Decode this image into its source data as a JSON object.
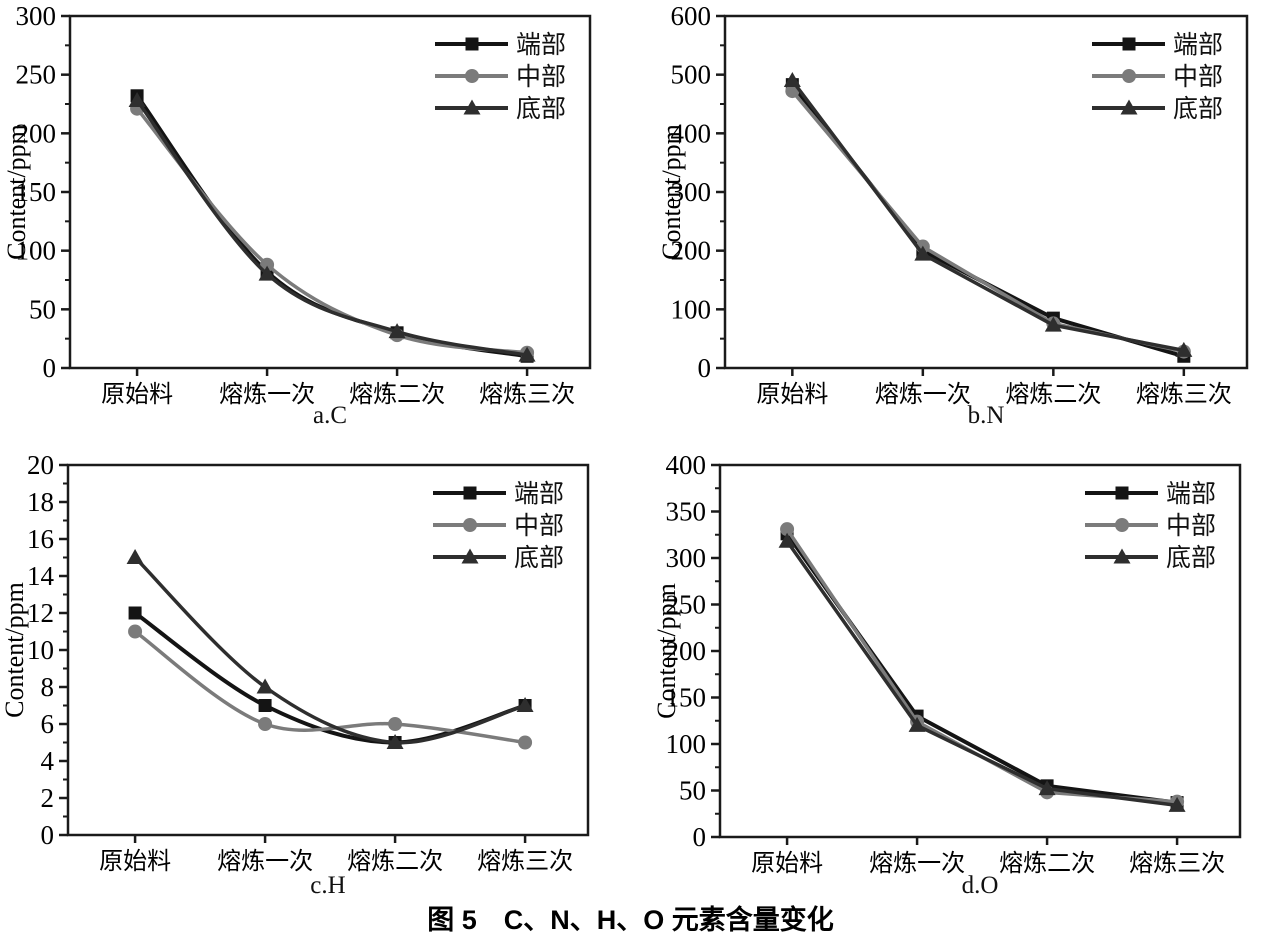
{
  "figure_caption": "图 5　C、N、H、O 元素含量变化",
  "legend": [
    "端部",
    "中部",
    "底部"
  ],
  "chart_data": [
    {
      "type": "line",
      "id": "a",
      "sublabel": "a.C",
      "ylabel": "Content/ppm",
      "ylim": [
        0,
        300
      ],
      "ystep": 50,
      "smooth": true,
      "grid": false,
      "legend_position": "top-right-inside",
      "categories": [
        "原始料",
        "熔炼一次",
        "熔炼二次",
        "熔炼三次"
      ],
      "series": [
        {
          "name": "端部",
          "key": "end",
          "marker": "square",
          "color": "#141414",
          "values": [
            232,
            82,
            30,
            10
          ]
        },
        {
          "name": "中部",
          "key": "middle",
          "marker": "circle",
          "color": "#7b7b7b",
          "values": [
            221,
            88,
            28,
            13
          ]
        },
        {
          "name": "底部",
          "key": "bottom",
          "marker": "triangle",
          "color": "#2e2e2e",
          "values": [
            228,
            80,
            31,
            11
          ]
        }
      ]
    },
    {
      "type": "line",
      "id": "b",
      "sublabel": "b.N",
      "ylabel": "Content/ppm",
      "ylim": [
        0,
        600
      ],
      "ystep": 100,
      "smooth": false,
      "grid": false,
      "legend_position": "top-right-inside",
      "categories": [
        "原始料",
        "熔炼一次",
        "熔炼二次",
        "熔炼三次"
      ],
      "series": [
        {
          "name": "端部",
          "key": "end",
          "marker": "square",
          "color": "#141414",
          "values": [
            483,
            200,
            85,
            20
          ]
        },
        {
          "name": "中部",
          "key": "middle",
          "marker": "circle",
          "color": "#7b7b7b",
          "values": [
            472,
            207,
            76,
            28
          ]
        },
        {
          "name": "底部",
          "key": "bottom",
          "marker": "triangle",
          "color": "#2e2e2e",
          "values": [
            490,
            194,
            73,
            30
          ]
        }
      ]
    },
    {
      "type": "line",
      "id": "c",
      "sublabel": "c.H",
      "ylabel": "Content/ppm",
      "ylim": [
        0,
        20
      ],
      "ystep": 2,
      "smooth": true,
      "grid": false,
      "legend_position": "top-right-inside",
      "categories": [
        "原始料",
        "熔炼一次",
        "熔炼二次",
        "熔炼三次"
      ],
      "series": [
        {
          "name": "端部",
          "key": "end",
          "marker": "square",
          "color": "#141414",
          "values": [
            12,
            7,
            5,
            7
          ]
        },
        {
          "name": "中部",
          "key": "middle",
          "marker": "circle",
          "color": "#7b7b7b",
          "values": [
            11,
            6,
            6,
            5
          ]
        },
        {
          "name": "底部",
          "key": "bottom",
          "marker": "triangle",
          "color": "#2e2e2e",
          "values": [
            15,
            8,
            5,
            7
          ]
        }
      ]
    },
    {
      "type": "line",
      "id": "d",
      "sublabel": "d.O",
      "ylabel": "Content/ppm",
      "ylim": [
        0,
        400
      ],
      "ystep": 50,
      "smooth": false,
      "grid": false,
      "legend_position": "top-right-inside",
      "categories": [
        "原始料",
        "熔炼一次",
        "熔炼二次",
        "熔炼三次"
      ],
      "series": [
        {
          "name": "端部",
          "key": "end",
          "marker": "square",
          "color": "#141414",
          "values": [
            326,
            130,
            55,
            37
          ]
        },
        {
          "name": "中部",
          "key": "middle",
          "marker": "circle",
          "color": "#7b7b7b",
          "values": [
            331,
            124,
            48,
            38
          ]
        },
        {
          "name": "底部",
          "key": "bottom",
          "marker": "triangle",
          "color": "#2e2e2e",
          "values": [
            318,
            120,
            52,
            34
          ]
        }
      ]
    }
  ]
}
